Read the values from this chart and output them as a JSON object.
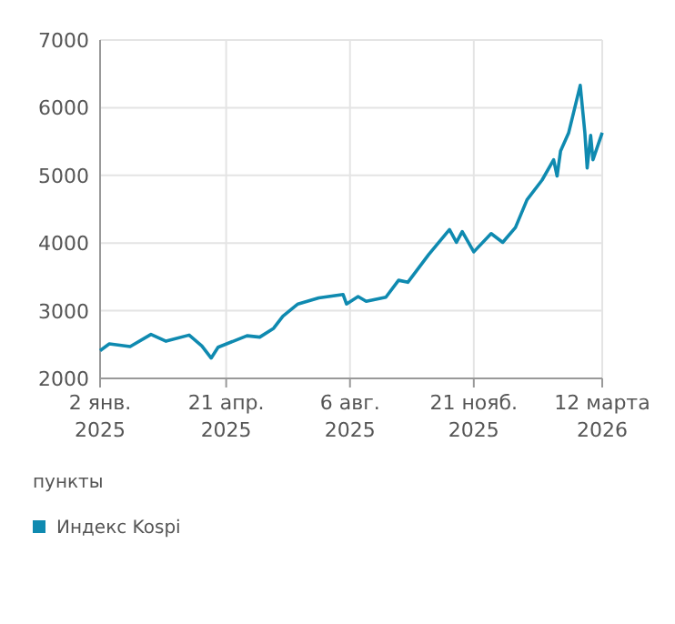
{
  "chart_data": {
    "type": "line",
    "ylabel": "пункты",
    "legend": "bottom",
    "grid": true,
    "xlim": [
      "2025-01-02",
      "2026-03-12"
    ],
    "ylim": [
      2000,
      7000
    ],
    "xticks": [
      {
        "value": "2025-01-02",
        "label": "2 янв.\n2025"
      },
      {
        "value": "2025-04-21",
        "label": "21 апр.\n2025"
      },
      {
        "value": "2025-08-06",
        "label": "6 авг.\n2025"
      },
      {
        "value": "2025-11-21",
        "label": "21 нояб.\n2025"
      },
      {
        "value": "2026-03-12",
        "label": "12 марта\n2026"
      }
    ],
    "yticks": [
      2000,
      3000,
      4000,
      5000,
      6000,
      7000
    ],
    "series": [
      {
        "name": "Индекс Kospi",
        "color": "#0f8ab0",
        "x": [
          "2025-01-02",
          "2025-01-10",
          "2025-01-28",
          "2025-02-15",
          "2025-02-28",
          "2025-03-20",
          "2025-03-31",
          "2025-04-08",
          "2025-04-14",
          "2025-05-09",
          "2025-05-20",
          "2025-06-01",
          "2025-06-09",
          "2025-06-22",
          "2025-07-10",
          "2025-07-31",
          "2025-08-03",
          "2025-08-13",
          "2025-08-20",
          "2025-09-06",
          "2025-09-17",
          "2025-09-25",
          "2025-10-13",
          "2025-10-31",
          "2025-11-06",
          "2025-11-11",
          "2025-11-21",
          "2025-12-06",
          "2025-12-16",
          "2025-12-27",
          "2026-01-06",
          "2026-01-19",
          "2026-01-29",
          "2026-02-01",
          "2026-02-04",
          "2026-02-11",
          "2026-02-21",
          "2026-02-25",
          "2026-02-27",
          "2026-03-02",
          "2026-03-04",
          "2026-03-12"
        ],
        "values": [
          2410,
          2510,
          2470,
          2650,
          2550,
          2640,
          2480,
          2300,
          2460,
          2630,
          2610,
          2740,
          2920,
          3100,
          3190,
          3240,
          3100,
          3210,
          3140,
          3200,
          3450,
          3420,
          3830,
          4200,
          4010,
          4170,
          3870,
          4140,
          4010,
          4230,
          4640,
          4930,
          5230,
          4990,
          5360,
          5630,
          6330,
          5630,
          5110,
          5590,
          5230,
          5630
        ]
      }
    ]
  }
}
